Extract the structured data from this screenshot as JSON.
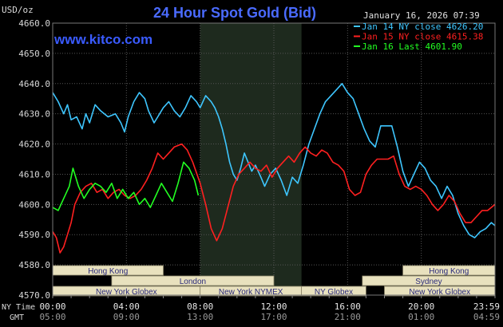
{
  "chart_data": {
    "type": "line",
    "title": "24 Hour Spot Gold (Bid)",
    "watermark": "www.kitco.com",
    "timestamp": "January 16, 2026 07:39",
    "unit_label": "USD/oz",
    "ylim": [
      4570,
      4660
    ],
    "yticks": [
      "4660.0",
      "4650.0",
      "4640.0",
      "4630.0",
      "4620.0",
      "4610.0",
      "4600.0",
      "4590.0",
      "4580.0",
      "4570.0"
    ],
    "xlim": [
      0,
      24
    ],
    "xticks_ny": [
      "00:00",
      "04:00",
      "08:00",
      "12:00",
      "16:00",
      "20:00",
      "23:59"
    ],
    "xticks_gmt": [
      "05:00",
      "09:00",
      "13:00",
      "17:00",
      "21:00",
      "01:00",
      "04:59"
    ],
    "axis_labels": {
      "ny": "NY Time",
      "gmt": "GMT"
    },
    "grid": true,
    "legend_position": "top-right",
    "colors": {
      "background": "#000000",
      "grid": "#555555",
      "band": "#1e2a1e",
      "session_fill": "#e8e1be",
      "session_text": "#2a2a7a",
      "title": "#4a6bff",
      "axis_text": "#d8d8d8"
    },
    "highlight_range": [
      8,
      13.5
    ],
    "sessions": [
      {
        "label": "Hong Kong",
        "start": 0,
        "end": 6,
        "row": 0
      },
      {
        "label": "London",
        "start": 3.2,
        "end": 12,
        "row": 1
      },
      {
        "label": "New York Globex",
        "start": 0,
        "end": 8,
        "row": 2
      },
      {
        "label": "New York NYMEX",
        "start": 8,
        "end": 13.5,
        "row": 2
      },
      {
        "label": "NY Globex",
        "start": 13.5,
        "end": 17,
        "row": 2
      },
      {
        "label": "Hong Kong",
        "start": 19,
        "end": 24,
        "row": 0
      },
      {
        "label": "Sydney",
        "start": 16.8,
        "end": 24,
        "row": 1
      },
      {
        "label": "New York Globex",
        "start": 18,
        "end": 24,
        "row": 2
      }
    ],
    "series": [
      {
        "name": "Jan 14 NY close 4626.20",
        "color": "#3ec6ff",
        "points": [
          [
            0,
            4637
          ],
          [
            0.3,
            4634
          ],
          [
            0.6,
            4630
          ],
          [
            0.8,
            4633
          ],
          [
            1.0,
            4628
          ],
          [
            1.3,
            4629
          ],
          [
            1.6,
            4625
          ],
          [
            1.8,
            4630
          ],
          [
            2.0,
            4627
          ],
          [
            2.3,
            4633
          ],
          [
            2.6,
            4631
          ],
          [
            3.0,
            4629
          ],
          [
            3.4,
            4630
          ],
          [
            3.7,
            4627
          ],
          [
            3.9,
            4624
          ],
          [
            4.1,
            4629
          ],
          [
            4.4,
            4634
          ],
          [
            4.7,
            4637
          ],
          [
            5.0,
            4635
          ],
          [
            5.2,
            4631
          ],
          [
            5.5,
            4627
          ],
          [
            5.7,
            4629
          ],
          [
            6.0,
            4632
          ],
          [
            6.3,
            4634
          ],
          [
            6.6,
            4631
          ],
          [
            6.9,
            4629
          ],
          [
            7.2,
            4632
          ],
          [
            7.5,
            4636
          ],
          [
            7.8,
            4634
          ],
          [
            8.0,
            4632
          ],
          [
            8.3,
            4636
          ],
          [
            8.6,
            4634
          ],
          [
            8.8,
            4632
          ],
          [
            9.0,
            4629
          ],
          [
            9.2,
            4625
          ],
          [
            9.4,
            4620
          ],
          [
            9.6,
            4614
          ],
          [
            9.8,
            4610
          ],
          [
            10.0,
            4608
          ],
          [
            10.2,
            4612
          ],
          [
            10.4,
            4617
          ],
          [
            10.6,
            4614
          ],
          [
            10.8,
            4611
          ],
          [
            11.0,
            4613
          ],
          [
            11.3,
            4609
          ],
          [
            11.5,
            4606
          ],
          [
            11.8,
            4610
          ],
          [
            12.1,
            4612
          ],
          [
            12.4,
            4608
          ],
          [
            12.7,
            4603
          ],
          [
            13.0,
            4609
          ],
          [
            13.3,
            4607
          ],
          [
            13.6,
            4613
          ],
          [
            13.9,
            4620
          ],
          [
            14.2,
            4625
          ],
          [
            14.5,
            4630
          ],
          [
            14.8,
            4634
          ],
          [
            15.1,
            4636
          ],
          [
            15.4,
            4638
          ],
          [
            15.7,
            4640
          ],
          [
            16.0,
            4637
          ],
          [
            16.3,
            4635
          ],
          [
            16.6,
            4630
          ],
          [
            16.9,
            4625
          ],
          [
            17.2,
            4621
          ],
          [
            17.5,
            4619
          ],
          [
            17.8,
            4626
          ],
          [
            18.1,
            4626
          ],
          [
            18.4,
            4626
          ],
          [
            18.7,
            4619
          ],
          [
            19.0,
            4611
          ],
          [
            19.3,
            4606
          ],
          [
            19.6,
            4610
          ],
          [
            19.9,
            4614
          ],
          [
            20.2,
            4612
          ],
          [
            20.5,
            4608
          ],
          [
            20.8,
            4606
          ],
          [
            21.1,
            4602
          ],
          [
            21.4,
            4606
          ],
          [
            21.7,
            4603
          ],
          [
            22.0,
            4597
          ],
          [
            22.3,
            4593
          ],
          [
            22.6,
            4590
          ],
          [
            22.9,
            4589
          ],
          [
            23.2,
            4591
          ],
          [
            23.5,
            4592
          ],
          [
            23.8,
            4594
          ],
          [
            24.0,
            4593
          ]
        ]
      },
      {
        "name": "Jan 15 NY close 4615.38",
        "color": "#ff2020",
        "points": [
          [
            0,
            4591
          ],
          [
            0.2,
            4589
          ],
          [
            0.4,
            4584
          ],
          [
            0.6,
            4586
          ],
          [
            0.8,
            4590
          ],
          [
            1.0,
            4594
          ],
          [
            1.2,
            4600
          ],
          [
            1.5,
            4604
          ],
          [
            1.8,
            4606
          ],
          [
            2.1,
            4607
          ],
          [
            2.4,
            4604
          ],
          [
            2.7,
            4605
          ],
          [
            3.0,
            4602
          ],
          [
            3.3,
            4604
          ],
          [
            3.6,
            4605
          ],
          [
            3.9,
            4603
          ],
          [
            4.2,
            4602
          ],
          [
            4.5,
            4603
          ],
          [
            4.8,
            4605
          ],
          [
            5.1,
            4608
          ],
          [
            5.4,
            4612
          ],
          [
            5.7,
            4617
          ],
          [
            6.0,
            4615
          ],
          [
            6.3,
            4617
          ],
          [
            6.6,
            4619
          ],
          [
            7.0,
            4620
          ],
          [
            7.3,
            4618
          ],
          [
            7.6,
            4614
          ],
          [
            8.0,
            4607
          ],
          [
            8.3,
            4600
          ],
          [
            8.6,
            4592
          ],
          [
            8.9,
            4588
          ],
          [
            9.2,
            4592
          ],
          [
            9.5,
            4599
          ],
          [
            9.8,
            4606
          ],
          [
            10.1,
            4610
          ],
          [
            10.4,
            4612
          ],
          [
            10.7,
            4614
          ],
          [
            11.0,
            4612
          ],
          [
            11.3,
            4611
          ],
          [
            11.6,
            4613
          ],
          [
            11.9,
            4609
          ],
          [
            12.2,
            4612
          ],
          [
            12.5,
            4614
          ],
          [
            12.8,
            4616
          ],
          [
            13.1,
            4614
          ],
          [
            13.4,
            4617
          ],
          [
            13.7,
            4619
          ],
          [
            14.0,
            4617
          ],
          [
            14.3,
            4616
          ],
          [
            14.6,
            4618
          ],
          [
            14.9,
            4617
          ],
          [
            15.2,
            4614
          ],
          [
            15.5,
            4613
          ],
          [
            15.8,
            4611
          ],
          [
            16.1,
            4605
          ],
          [
            16.4,
            4603
          ],
          [
            16.7,
            4604
          ],
          [
            17.0,
            4610
          ],
          [
            17.3,
            4613
          ],
          [
            17.6,
            4615
          ],
          [
            17.9,
            4615
          ],
          [
            18.2,
            4615
          ],
          [
            18.5,
            4616
          ],
          [
            18.8,
            4610
          ],
          [
            19.1,
            4606
          ],
          [
            19.4,
            4605
          ],
          [
            19.7,
            4606
          ],
          [
            20.0,
            4605
          ],
          [
            20.3,
            4603
          ],
          [
            20.6,
            4600
          ],
          [
            20.9,
            4598
          ],
          [
            21.2,
            4600
          ],
          [
            21.5,
            4603
          ],
          [
            21.8,
            4601
          ],
          [
            22.1,
            4597
          ],
          [
            22.4,
            4594
          ],
          [
            22.7,
            4594
          ],
          [
            23.0,
            4596
          ],
          [
            23.3,
            4598
          ],
          [
            23.6,
            4598
          ],
          [
            24.0,
            4600
          ]
        ]
      },
      {
        "name": "Jan 16 Last 4601.90",
        "color": "#22ff22",
        "points": [
          [
            0,
            4599
          ],
          [
            0.3,
            4598
          ],
          [
            0.6,
            4602
          ],
          [
            0.9,
            4606
          ],
          [
            1.1,
            4612
          ],
          [
            1.4,
            4606
          ],
          [
            1.7,
            4602
          ],
          [
            2.0,
            4605
          ],
          [
            2.3,
            4607
          ],
          [
            2.6,
            4606
          ],
          [
            2.9,
            4604
          ],
          [
            3.2,
            4607
          ],
          [
            3.5,
            4602
          ],
          [
            3.8,
            4605
          ],
          [
            4.1,
            4602
          ],
          [
            4.4,
            4604
          ],
          [
            4.7,
            4600
          ],
          [
            5.0,
            4602
          ],
          [
            5.3,
            4599
          ],
          [
            5.6,
            4603
          ],
          [
            5.9,
            4607
          ],
          [
            6.2,
            4604
          ],
          [
            6.5,
            4601
          ],
          [
            6.8,
            4607
          ],
          [
            7.1,
            4614
          ],
          [
            7.4,
            4612
          ],
          [
            7.7,
            4608
          ],
          [
            7.9,
            4603
          ]
        ]
      }
    ]
  }
}
